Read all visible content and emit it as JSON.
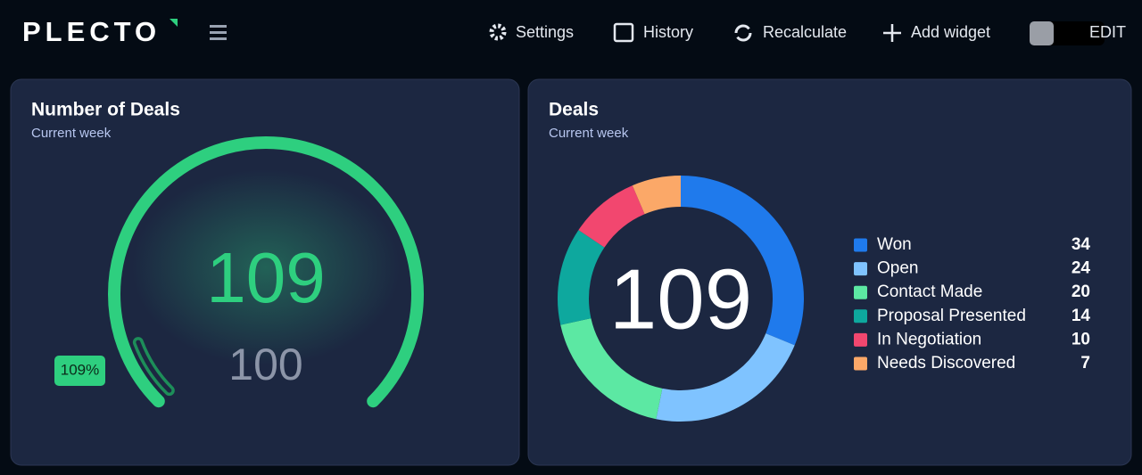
{
  "header": {
    "logo": "PLECTO",
    "nav": [
      "Settings",
      "History",
      "Recalculate",
      "Add widget"
    ],
    "edit": "EDIT"
  },
  "widgets": [
    {
      "type": "gauge",
      "title": "Number of Deals",
      "subtitle": "Current week",
      "value": 109,
      "target": 100,
      "badge": "109%",
      "color": "#2ecf7f"
    },
    {
      "type": "donut",
      "title": "Deals",
      "subtitle": "Current week",
      "total": 109,
      "series": [
        {
          "name": "Won",
          "color": "#1f7aec",
          "value": 34
        },
        {
          "name": "Open",
          "color": "#7fc3ff",
          "value": 24
        },
        {
          "name": "Contact Made",
          "color": "#5ce8a3",
          "value": 20
        },
        {
          "name": "Proposal Presented",
          "color": "#0ea89e",
          "value": 14
        },
        {
          "name": "In Negotiation",
          "color": "#f2476f",
          "value": 10
        },
        {
          "name": "Needs Discovered",
          "color": "#fba868",
          "value": 7
        }
      ]
    }
  ]
}
